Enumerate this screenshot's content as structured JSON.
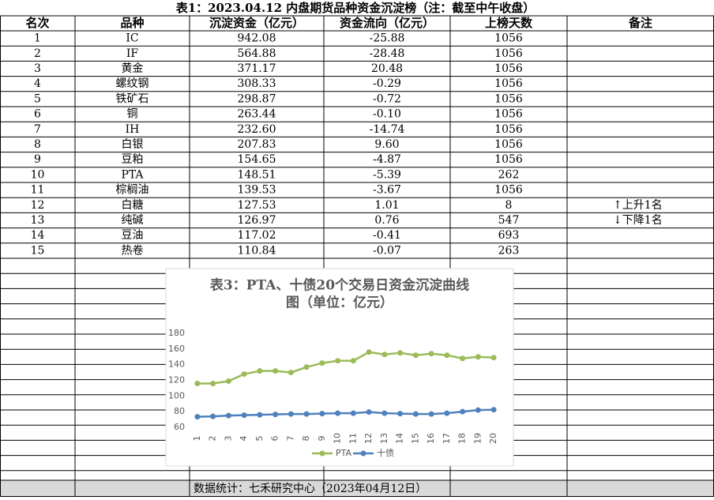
{
  "table": {
    "title": "表1：2023.04.12 内盘期货品种资金沉淀榜（注：截至中午收盘）",
    "header": [
      "名次",
      "品种",
      "沉淀资金（亿元）",
      "资金流向（亿元）",
      "上榜天数",
      "备注"
    ],
    "rows": [
      [
        "1",
        "IC",
        "942.08",
        "-25.88",
        "1056"
      ],
      [
        "2",
        "IF",
        "564.88",
        "-28.48",
        "1056"
      ],
      [
        "3",
        "黄金",
        "371.17",
        "20.48",
        "1056"
      ],
      [
        "4",
        "螺纹钢",
        "308.33",
        "-0.29",
        "1056"
      ],
      [
        "5",
        "铁矿石",
        "298.87",
        "-0.72",
        "1056"
      ],
      [
        "6",
        "铜",
        "263.44",
        "-0.10",
        "1056"
      ],
      [
        "7",
        "IH",
        "232.60",
        "-14.74",
        "1056"
      ],
      [
        "8",
        "白银",
        "207.83",
        "9.60",
        "1056"
      ],
      [
        "9",
        "豆粕",
        "154.65",
        "-4.87",
        "1056"
      ],
      [
        "10",
        "PTA",
        "148.51",
        "-5.39",
        "262"
      ],
      [
        "11",
        "棕榈油",
        "139.53",
        "-3.67",
        "1056"
      ],
      [
        "12",
        "白糖",
        "127.53",
        "1.01",
        "8"
      ],
      [
        "13",
        "纯碱",
        "126.97",
        "0.76",
        "547"
      ],
      [
        "14",
        "豆油",
        "117.02",
        "-0.41",
        "693"
      ],
      [
        "15",
        "热卷",
        "110.84",
        "-0.07",
        "263"
      ]
    ],
    "remarks": [
      {
        "rank": "12",
        "text": "↑上升1名"
      },
      {
        "rank": "13",
        "text": "↓下降1名"
      }
    ],
    "footer": "数据统计：七禾研究中心（2023年04月12日）"
  },
  "chart_data": {
    "type": "line",
    "title": [
      "表3：PTA、十债20个交易日资金沉淀曲线",
      "图（单位：亿元）"
    ],
    "categories": [
      "1",
      "2",
      "3",
      "4",
      "5",
      "6",
      "7",
      "8",
      "9",
      "10",
      "11",
      "12",
      "13",
      "14",
      "15",
      "16",
      "17",
      "18",
      "19",
      "20"
    ],
    "series": [
      {
        "name": "PTA",
        "color": "#9bbb59",
        "values": [
          116,
          116,
          119,
          128,
          132,
          132,
          130,
          137,
          142,
          145,
          145,
          156,
          153,
          155,
          152,
          154,
          152,
          148,
          150,
          149
        ]
      },
      {
        "name": "十债",
        "color": "#4f81bd",
        "values": [
          73.5,
          74,
          75,
          75.5,
          76,
          76.5,
          77,
          77,
          77.5,
          78,
          78,
          79.5,
          78,
          77.5,
          77,
          77,
          78,
          80,
          82,
          82.5
        ]
      }
    ],
    "ylim": [
      60,
      180
    ],
    "yticks": [
      60,
      80,
      100,
      120,
      140,
      160,
      180
    ],
    "legend": "bottom"
  }
}
